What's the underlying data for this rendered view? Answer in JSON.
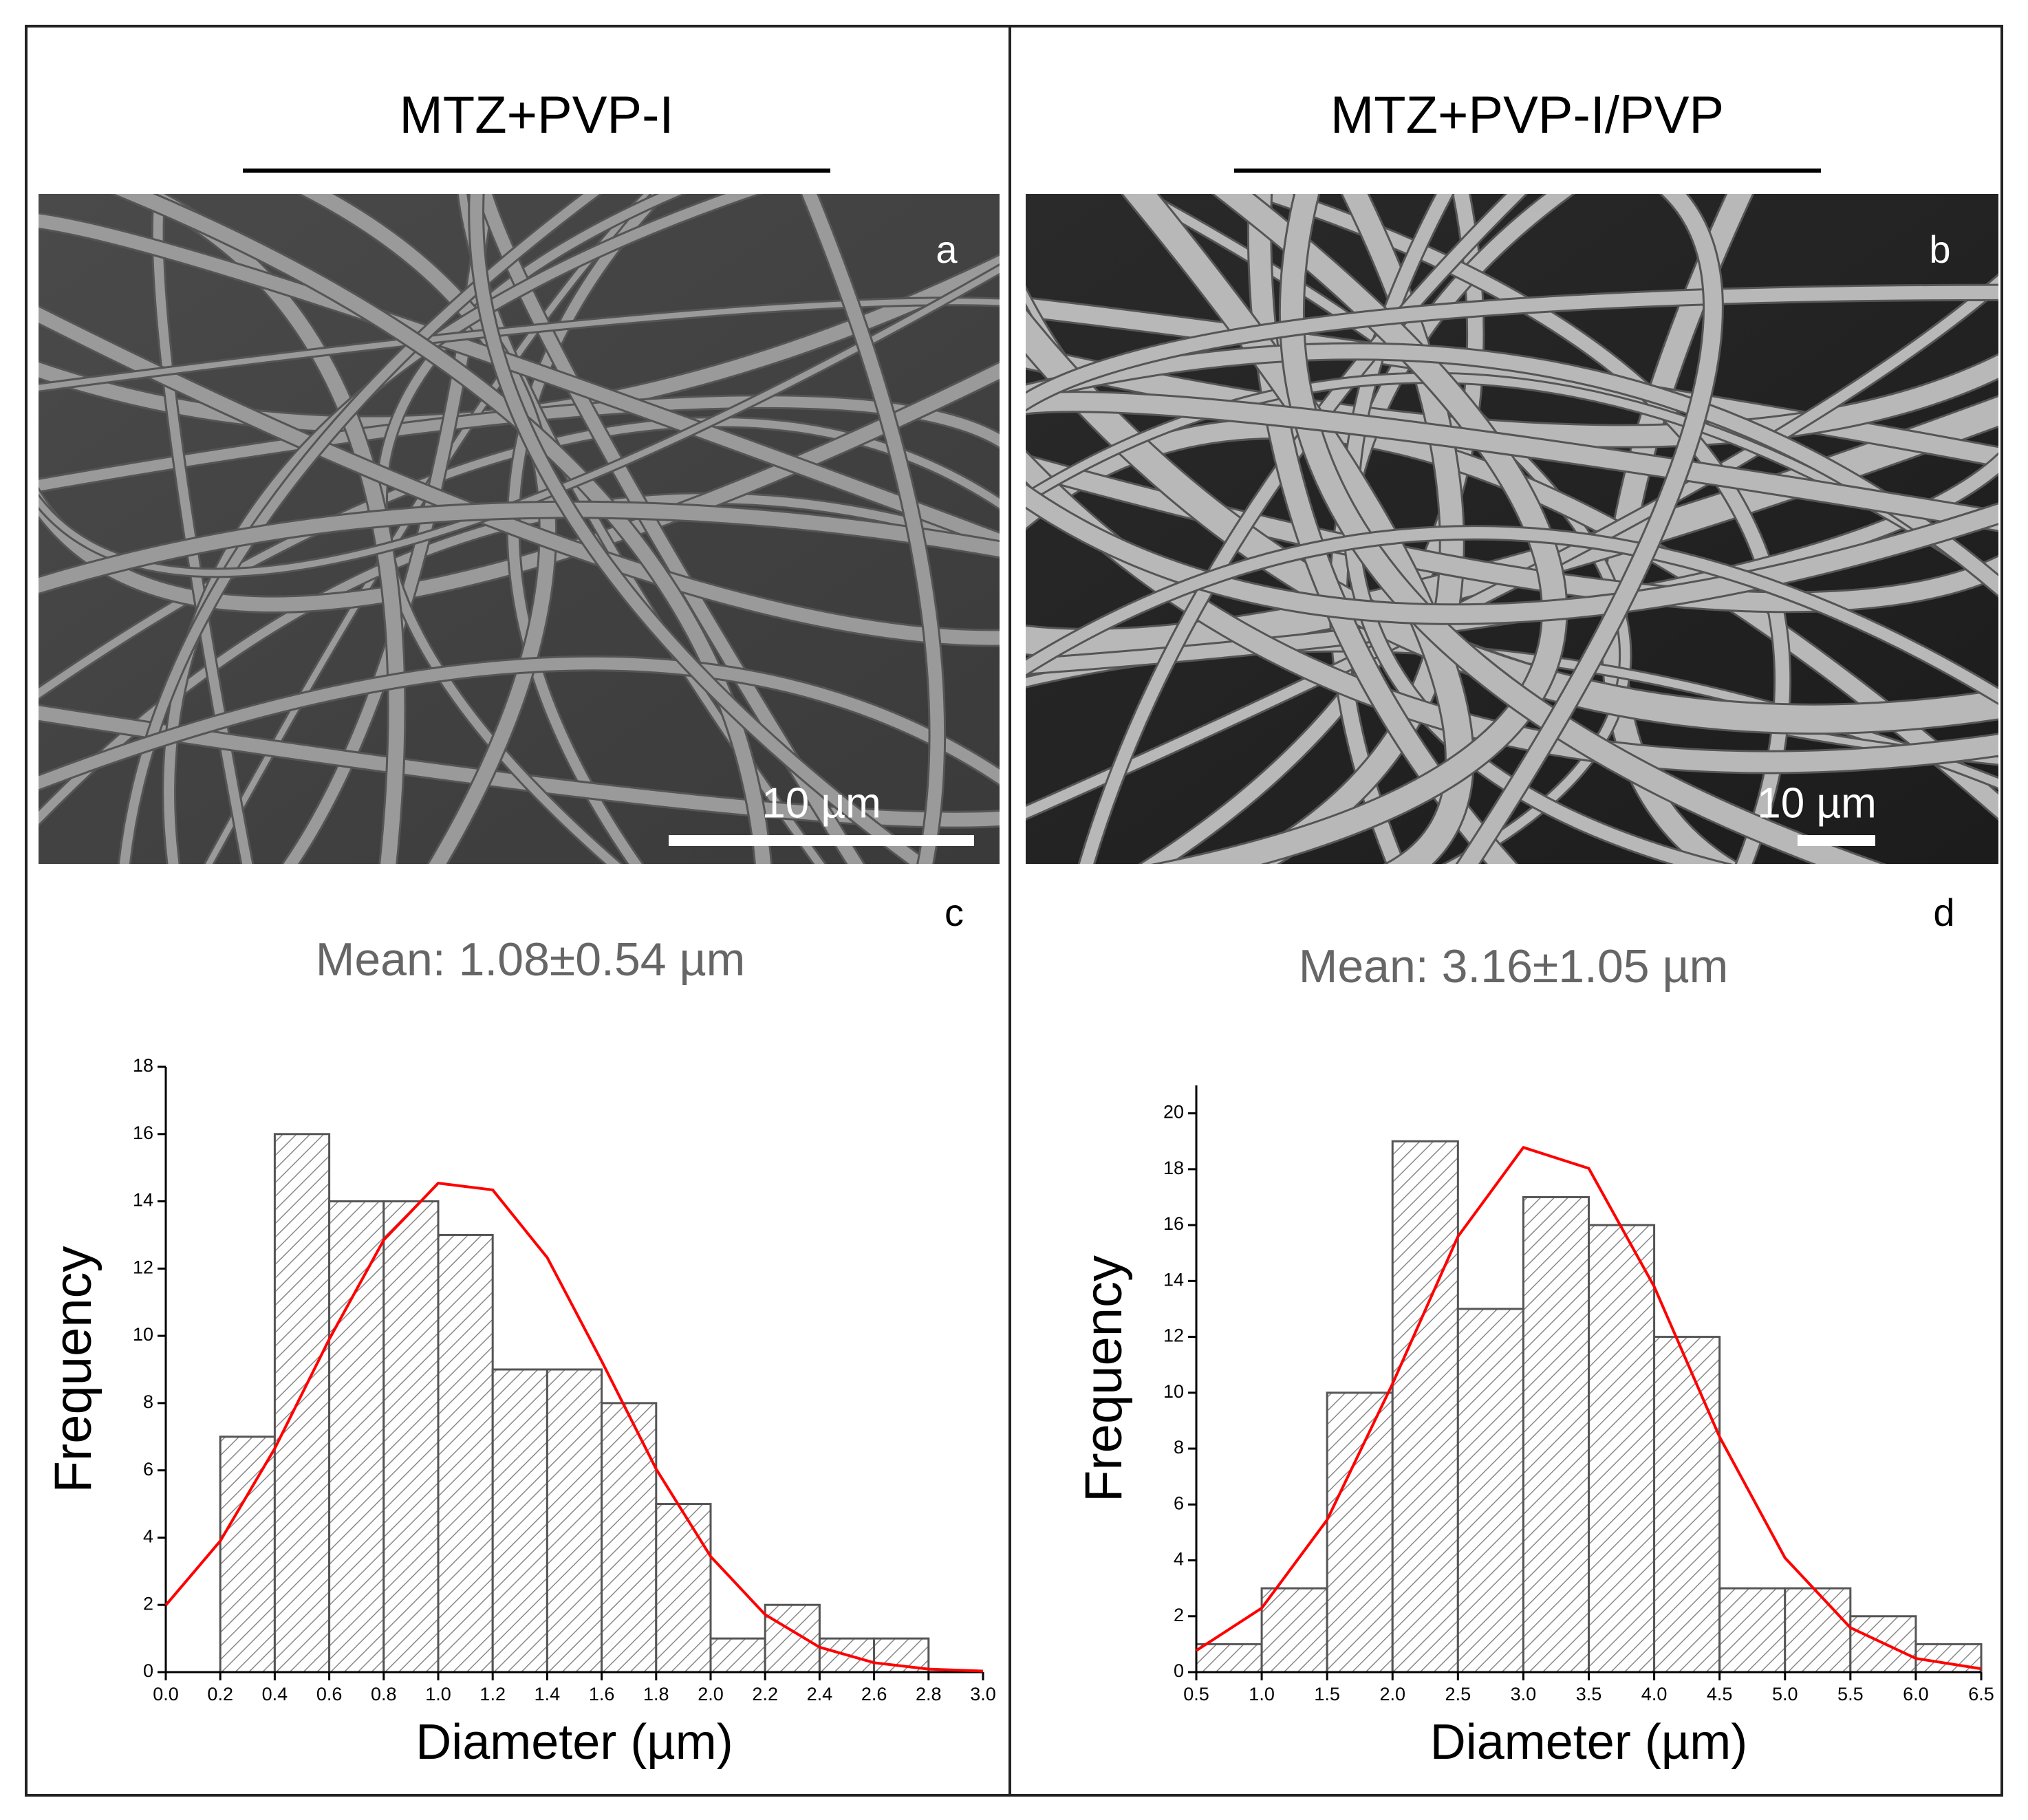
{
  "panels": [
    {
      "title": "MTZ+PVP-I",
      "letter": "a",
      "scale_bar": "10 µm"
    },
    {
      "title": "MTZ+PVP-I/PVP",
      "letter": "b",
      "scale_bar": "10 µm"
    }
  ],
  "chart_data": [
    {
      "type": "histogram",
      "label": "c",
      "title": "Mean: 1.08±0.54 µm",
      "xlabel": "Diameter (µm)",
      "ylabel": "Frequency",
      "color": "#555555",
      "bins": [
        0.2,
        0.4,
        0.6,
        0.8,
        1.0,
        1.2,
        1.4,
        1.6,
        1.8,
        2.0,
        2.2,
        2.4,
        2.6,
        2.8
      ],
      "counts": [
        7,
        16,
        14,
        14,
        13,
        9,
        9,
        8,
        5,
        1,
        2,
        1,
        1
      ],
      "fit": {
        "color": "#ff0000",
        "x": [
          0,
          0.2,
          0.4,
          0.6,
          0.8,
          1.0,
          1.2,
          1.4,
          1.6,
          1.8,
          2.0,
          2.2,
          2.4,
          2.6,
          2.8,
          3.0
        ],
        "y": [
          1.99,
          3.9,
          6.65,
          9.9,
          12.85,
          14.54,
          14.34,
          12.33,
          9.25,
          6.04,
          3.44,
          1.71,
          0.74,
          0.28,
          0.09,
          0.03
        ]
      },
      "xlim": [
        0,
        3
      ],
      "ylim": [
        0,
        18
      ],
      "xticks": [
        {
          "value": 0,
          "label": "0.0"
        },
        {
          "value": 0.2,
          "label": "0.2"
        },
        {
          "value": 0.4,
          "label": "0.4"
        },
        {
          "value": 0.6,
          "label": "0.6"
        },
        {
          "value": 0.8,
          "label": "0.8"
        },
        {
          "value": 1,
          "label": "1.0"
        },
        {
          "value": 1.2,
          "label": "1.2"
        },
        {
          "value": 1.4,
          "label": "1.4"
        },
        {
          "value": 1.6,
          "label": "1.6"
        },
        {
          "value": 1.8,
          "label": "1.8"
        },
        {
          "value": 2,
          "label": "2.0"
        },
        {
          "value": 2.2,
          "label": "2.2"
        },
        {
          "value": 2.4,
          "label": "2.4"
        },
        {
          "value": 2.6,
          "label": "2.6"
        },
        {
          "value": 2.8,
          "label": "2.8"
        },
        {
          "value": 3,
          "label": "3.0"
        }
      ],
      "yticks": [
        0,
        2,
        4,
        6,
        8,
        10,
        12,
        14,
        16,
        18
      ]
    },
    {
      "type": "histogram",
      "label": "d",
      "title": "Mean: 3.16±1.05 µm",
      "xlabel": "Diameter (µm)",
      "ylabel": "Frequency",
      "color": "#555555",
      "bins": [
        0.5,
        1.0,
        1.5,
        2.0,
        2.5,
        3.0,
        3.5,
        4.0,
        4.5,
        5.0,
        5.5,
        6.0,
        6.5
      ],
      "counts": [
        1,
        3,
        10,
        19,
        13,
        17,
        16,
        12,
        3,
        3,
        2,
        1
      ],
      "fit": {
        "color": "#ff0000",
        "x": [
          0.5,
          1.0,
          1.5,
          2.0,
          2.5,
          3.0,
          3.5,
          4.0,
          4.5,
          5.0,
          5.5,
          6.0,
          6.5
        ],
        "y": [
          0.77,
          2.29,
          5.45,
          10.32,
          15.59,
          18.78,
          18.03,
          13.8,
          8.42,
          4.09,
          1.59,
          0.49,
          0.12
        ]
      },
      "xlim": [
        0.5,
        6.5
      ],
      "ylim": [
        0,
        21
      ],
      "xticks": [
        {
          "value": 0.5,
          "label": "0.5"
        },
        {
          "value": 1,
          "label": "1.0"
        },
        {
          "value": 1.5,
          "label": "1.5"
        },
        {
          "value": 2,
          "label": "2.0"
        },
        {
          "value": 2.5,
          "label": "2.5"
        },
        {
          "value": 3,
          "label": "3.0"
        },
        {
          "value": 3.5,
          "label": "3.5"
        },
        {
          "value": 4,
          "label": "4.0"
        },
        {
          "value": 4.5,
          "label": "4.5"
        },
        {
          "value": 5,
          "label": "5.0"
        },
        {
          "value": 5.5,
          "label": "5.5"
        },
        {
          "value": 6,
          "label": "6.0"
        },
        {
          "value": 6.5,
          "label": "6.5"
        }
      ],
      "yticks": [
        0,
        2,
        4,
        6,
        8,
        10,
        12,
        14,
        16,
        18,
        20
      ]
    }
  ]
}
